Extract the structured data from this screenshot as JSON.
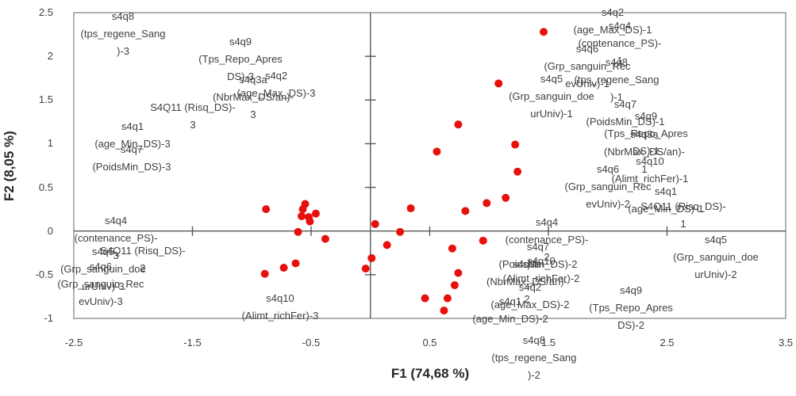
{
  "chart_data": {
    "type": "scatter",
    "title": "",
    "xlabel": "F1 (74,68 %)",
    "ylabel": "F2 (8,05 %)",
    "xlim": [
      -2.5,
      3.5
    ],
    "ylim": [
      -1,
      2.5
    ],
    "grid": false,
    "legend": "none",
    "marker_color": "#e8100c",
    "axis_color": "#595959",
    "frame_color": "#7f7f7f",
    "label_color": "#3f3f3f",
    "x_ticks": [
      -2.5,
      -1.5,
      -0.5,
      0.5,
      1.5,
      2.5,
      3.5
    ],
    "x_tick_labels": [
      "-2.5",
      "-1.5",
      "-0.5",
      "0.5",
      "1.5",
      "2.5",
      "3.5"
    ],
    "y_ticks": [
      2.5,
      2,
      1.5,
      1,
      0.5,
      0,
      -0.5,
      -1
    ],
    "y_tick_labels": [
      "2.5",
      "2",
      "1.5",
      "1",
      "0.5",
      "0",
      "-0.5",
      "-1"
    ],
    "points": [
      {
        "x": 1.46,
        "y": 2.28
      },
      {
        "x": 1.08,
        "y": 1.69
      },
      {
        "x": 0.74,
        "y": 1.22
      },
      {
        "x": 0.56,
        "y": 0.91
      },
      {
        "x": 1.22,
        "y": 0.99
      },
      {
        "x": 1.24,
        "y": 0.68
      },
      {
        "x": 1.14,
        "y": 0.38
      },
      {
        "x": 0.98,
        "y": 0.32
      },
      {
        "x": 0.8,
        "y": 0.23
      },
      {
        "x": 0.95,
        "y": -0.11
      },
      {
        "x": 0.69,
        "y": -0.2
      },
      {
        "x": 0.74,
        "y": -0.48
      },
      {
        "x": 0.71,
        "y": -0.62
      },
      {
        "x": 0.65,
        "y": -0.77
      },
      {
        "x": 0.62,
        "y": -0.91
      },
      {
        "x": 0.46,
        "y": -0.77
      },
      {
        "x": 0.34,
        "y": 0.26
      },
      {
        "x": 0.25,
        "y": -0.01
      },
      {
        "x": 0.14,
        "y": -0.16
      },
      {
        "x": 0.04,
        "y": 0.08
      },
      {
        "x": 0.01,
        "y": -0.31
      },
      {
        "x": -0.04,
        "y": -0.43
      },
      {
        "x": -0.88,
        "y": 0.25
      },
      {
        "x": -0.55,
        "y": 0.31
      },
      {
        "x": -0.57,
        "y": 0.25
      },
      {
        "x": -0.58,
        "y": 0.17
      },
      {
        "x": -0.46,
        "y": 0.2
      },
      {
        "x": -0.52,
        "y": 0.16
      },
      {
        "x": -0.51,
        "y": 0.11
      },
      {
        "x": -0.61,
        "y": -0.01
      },
      {
        "x": -0.38,
        "y": -0.09
      },
      {
        "x": -0.89,
        "y": -0.49
      },
      {
        "x": -0.73,
        "y": -0.42
      },
      {
        "x": -0.63,
        "y": -0.37
      }
    ],
    "labels": [
      {
        "name": "s4q8 (tps_regene_Sang)-3",
        "x": -2.085,
        "y": 2.455,
        "lines": [
          "s4q8",
          "(tps_regene_Sang",
          ")-3"
        ]
      },
      {
        "name": "s4q9 (Tps_Repo_Apres DS)-3",
        "x": -1.095,
        "y": 2.165,
        "lines": [
          "s4q9",
          "(Tps_Repo_Apres",
          "DS)-3"
        ]
      },
      {
        "name": "s4q2 (age_Max_DS)-3",
        "x": -0.794,
        "y": 1.775,
        "lines": [
          "s4q2",
          "(age_Max_DS)-3"
        ]
      },
      {
        "name": "s4q3a (NbrMax_DS/an)-3",
        "x": -0.988,
        "y": 1.729,
        "lines": [
          "s4q3a",
          "(NbrMax_DS/an)-",
          "3"
        ]
      },
      {
        "name": "S4Q11 (Risq_DS)-3",
        "x": -1.497,
        "y": 1.412,
        "lines": [
          "S4Q11 (Risq_DS)-",
          "3"
        ]
      },
      {
        "name": "s4q1 (age_Min_DS)-3",
        "x": -2.005,
        "y": 1.194,
        "lines": [
          "s4q1",
          "(age_Min_DS)-3"
        ]
      },
      {
        "name": "s4q7 (PoidsMin_DS)-3",
        "x": -2.012,
        "y": 0.931,
        "lines": [
          "s4q7",
          "(PoidsMin_DS)-3"
        ]
      },
      {
        "name": "s4q4 (contenance_PS)-3",
        "x": -2.145,
        "y": 0.115,
        "lines": [
          "s4q4",
          "(contenance_PS)-",
          "3"
        ]
      },
      {
        "name": "S4Q11 (Risq_DS)-2",
        "x": -1.918,
        "y": -0.229,
        "lines": [
          "S4Q11 (Risq_DS)-",
          "2"
        ]
      },
      {
        "name": "s4q5 (Grp_sanguin_doeurUniv)-3",
        "x": -2.253,
        "y": -0.238,
        "lines": [
          "s4q5",
          "(Grp_sanguin_doe",
          "urUniv)-3"
        ]
      },
      {
        "name": "s4q6 (Grp_sanguin_RecevUniv)-3",
        "x": -2.273,
        "y": -0.411,
        "lines": [
          "s4q6",
          "(Grp_sanguin_Rec",
          "evUniv)-3"
        ]
      },
      {
        "name": "s4q10 (Alimt_richFer)-3",
        "x": -0.761,
        "y": -0.773,
        "lines": [
          "s4q10",
          "(Alimt_richFer)-3"
        ]
      },
      {
        "name": "s4q4 (contenance_PS)-2",
        "x": 1.487,
        "y": 0.097,
        "lines": [
          "s4q4",
          "(contenance_PS)-",
          "2"
        ]
      },
      {
        "name": "s4q7 (PoidsMin_DS)-2",
        "x": 1.413,
        "y": -0.184,
        "lines": [
          "s4q7",
          "(PoidsMin_DS)-2"
        ]
      },
      {
        "name": "s4q10 (Alimt_richFer)-2",
        "x": 1.44,
        "y": -0.347,
        "lines": [
          "s4q10",
          "(Alimt_richFer)-2"
        ]
      },
      {
        "name": "s4q3a (NbrMax_DS/an)-2",
        "x": 1.319,
        "y": -0.383,
        "lines": [
          "s4q3a",
          "(NbrMax_DS/an)-",
          "2"
        ]
      },
      {
        "name": "s4q2 (age_Max_DS)-2",
        "x": 1.346,
        "y": -0.646,
        "lines": [
          "s4q2",
          "(age_Max_DS)-2"
        ]
      },
      {
        "name": "s4q1 (age_Min_DS)-2",
        "x": 1.179,
        "y": -0.81,
        "lines": [
          "s4q1",
          "(age_Min_DS)-2"
        ]
      },
      {
        "name": "s4q9 (Tps_Repo_Apres DS)-2",
        "x": 2.196,
        "y": -0.683,
        "lines": [
          "s4q9",
          "(Tps_Repo_Apres",
          "DS)-2"
        ]
      },
      {
        "name": "s4q5 (Grp_sanguin_doeurUniv)-2",
        "x": 2.911,
        "y": -0.102,
        "lines": [
          "s4q5",
          "(Grp_sanguin_doe",
          "urUniv)-2"
        ]
      },
      {
        "name": "s4q8 (tps_regene_Sang)-2",
        "x": 1.379,
        "y": -1.254,
        "lines": [
          "s4q8",
          "(tps_regene_Sang",
          ")-2"
        ]
      },
      {
        "name": "s4q2 (age_Max_DS)-1",
        "x": 2.042,
        "y": 2.5,
        "lines": [
          "s4q2",
          "(age_Max_DS)-1"
        ]
      },
      {
        "name": "s4q4 (contenance_PS)-1",
        "x": 2.102,
        "y": 2.346,
        "lines": [
          "s4q4",
          "(contenance_PS)-",
          "1"
        ]
      },
      {
        "name": "s4q8 (tps_regene_Sang)-1",
        "x": 2.075,
        "y": 1.929,
        "lines": [
          "s4q8",
          "(tps_regene_Sang",
          ")-1"
        ]
      },
      {
        "name": "s4q6 (Grp_sanguin_RecevUniv)-1",
        "x": 1.828,
        "y": 2.083,
        "lines": [
          "s4q6",
          "(Grp_sanguin_Rec",
          "evUniv)-1"
        ]
      },
      {
        "name": "s4q5 (Grp_sanguin_doeurUniv)-1",
        "x": 1.527,
        "y": 1.738,
        "lines": [
          "s4q5",
          "(Grp_sanguin_doe",
          "urUniv)-1"
        ]
      },
      {
        "name": "s4q7 (PoidsMin_DS)-1",
        "x": 2.149,
        "y": 1.448,
        "lines": [
          "s4q7",
          "(PoidsMin_DS)-1"
        ]
      },
      {
        "name": "s4q9 (Tps_Repo_Apres DS)-1",
        "x": 2.323,
        "y": 1.312,
        "lines": [
          "s4q9",
          "(Tps_Repo_Apres",
          "DS)-1"
        ]
      },
      {
        "name": "s4q3a (NbrMax_DS/an)-1",
        "x": 2.309,
        "y": 1.104,
        "lines": [
          "s4q3a",
          "(NbrMax_DS/an)-",
          "1"
        ]
      },
      {
        "name": "s4q10 (Alimt_richFer)-1",
        "x": 2.356,
        "y": 0.795,
        "lines": [
          "s4q10",
          "(Alimt_richFer)-1"
        ]
      },
      {
        "name": "s4q6 (Grp_sanguin_RecevUniv)-2",
        "x": 2.002,
        "y": 0.705,
        "lines": [
          "s4q6",
          "(Grp_sanguin_Rec",
          "evUniv)-2"
        ]
      },
      {
        "name": "s4q1 (age_Min_DS)-1",
        "x": 2.49,
        "y": 0.451,
        "lines": [
          "s4q1",
          "(age_Min_DS)-1"
        ]
      },
      {
        "name": "S4Q11 (Risq_DS)-1",
        "x": 2.637,
        "y": 0.279,
        "lines": [
          "S4Q11 (Risq_DS)-",
          "1"
        ]
      }
    ]
  }
}
